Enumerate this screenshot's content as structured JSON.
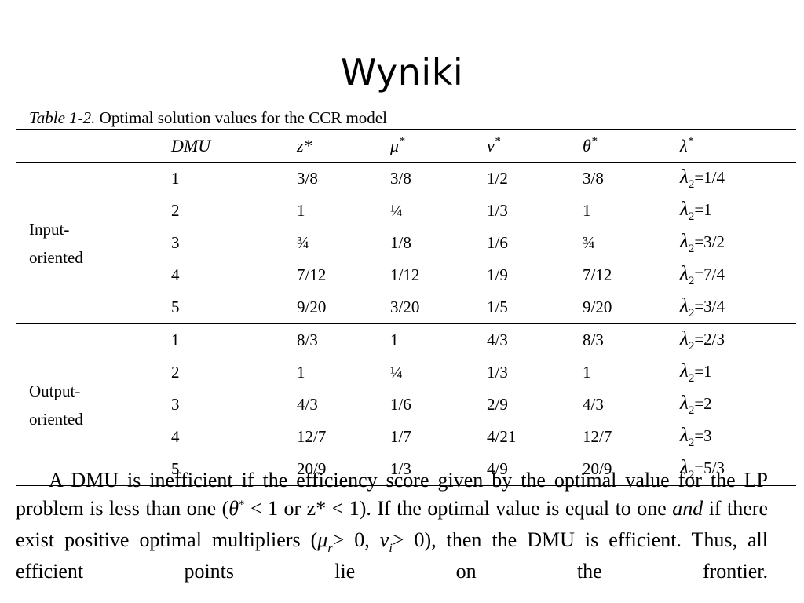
{
  "slide": {
    "title": "Wyniki"
  },
  "table": {
    "caption_label": "Table 1-2.",
    "caption_text": " Optimal solution values for the CCR model",
    "headers": {
      "group": "",
      "dmu": "DMU",
      "z": "z*",
      "mu": "μ",
      "nu": "ν",
      "theta": "θ",
      "lambda": "λ",
      "star": "*"
    },
    "sections": [
      {
        "group_line1": "Input-",
        "group_line2": "oriented",
        "rows": [
          {
            "dmu": "1",
            "z": "3/8",
            "mu": "3/8",
            "nu": "1/2",
            "theta": "3/8",
            "lambda_sym": "λ",
            "lambda_sub": "2",
            "lambda_val": "=1/4"
          },
          {
            "dmu": "2",
            "z": "1",
            "mu": "¼",
            "nu": "1/3",
            "theta": "1",
            "lambda_sym": "λ",
            "lambda_sub": "2",
            "lambda_val": "=1"
          },
          {
            "dmu": "3",
            "z": "¾",
            "mu": "1/8",
            "nu": "1/6",
            "theta": "¾",
            "lambda_sym": "λ",
            "lambda_sub": "2",
            "lambda_val": "=3/2"
          },
          {
            "dmu": "4",
            "z": "7/12",
            "mu": "1/12",
            "nu": "1/9",
            "theta": "7/12",
            "lambda_sym": "λ",
            "lambda_sub": "2",
            "lambda_val": "=7/4"
          },
          {
            "dmu": "5",
            "z": "9/20",
            "mu": "3/20",
            "nu": "1/5",
            "theta": "9/20",
            "lambda_sym": "λ",
            "lambda_sub": "2",
            "lambda_val": "=3/4"
          }
        ]
      },
      {
        "group_line1": "Output-",
        "group_line2": "oriented",
        "rows": [
          {
            "dmu": "1",
            "z": "8/3",
            "mu": "1",
            "nu": "4/3",
            "theta": "8/3",
            "lambda_sym": "λ",
            "lambda_sub": "2",
            "lambda_val": "=2/3"
          },
          {
            "dmu": "2",
            "z": "1",
            "mu": "¼",
            "nu": "1/3",
            "theta": "1",
            "lambda_sym": "λ",
            "lambda_sub": "2",
            "lambda_val": "=1"
          },
          {
            "dmu": "3",
            "z": "4/3",
            "mu": "1/6",
            "nu": "2/9",
            "theta": "4/3",
            "lambda_sym": "λ",
            "lambda_sub": "2",
            "lambda_val": "=2"
          },
          {
            "dmu": "4",
            "z": "12/7",
            "mu": "1/7",
            "nu": "4/21",
            "theta": "12/7",
            "lambda_sym": "λ",
            "lambda_sub": "2",
            "lambda_val": "=3"
          },
          {
            "dmu": "5",
            "z": "20/9",
            "mu": "1/3",
            "nu": "4/9",
            "theta": "20/9",
            "lambda_sym": "λ",
            "lambda_sub": "2",
            "lambda_val": "=5/3"
          }
        ]
      }
    ]
  },
  "paragraph": {
    "t1": "A DMU is inefficient if the efficiency score given by the optimal value for the LP problem is less than one (",
    "theta": "θ",
    "star": "*",
    "t2": " < 1 or z* < 1). If the optimal value is equal to one ",
    "and": "and",
    "t3": " if there exist positive optimal multipliers (",
    "mu": "μ",
    "mu_sub": "r",
    "t4": "> 0, ",
    "nu": "ν",
    "nu_sub": "i",
    "t5": "> 0), then the DMU is efficient. Thus, all efficient points lie on the frontier."
  }
}
